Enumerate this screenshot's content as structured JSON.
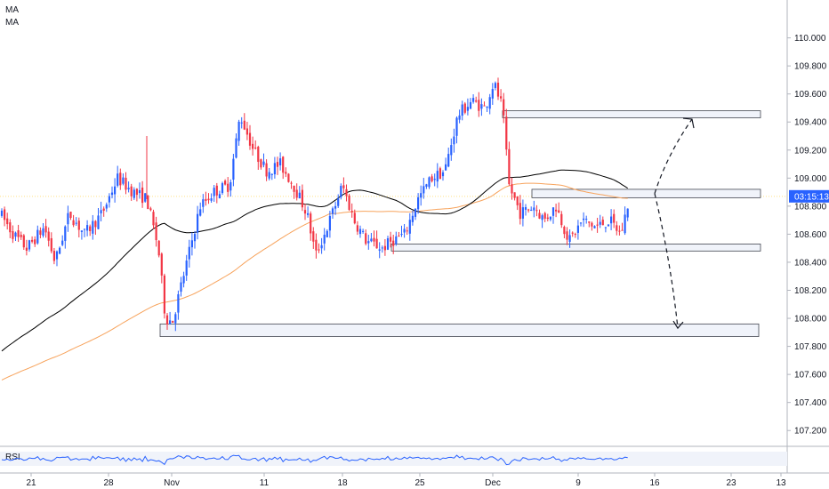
{
  "chart_data": {
    "type": "candlestick",
    "indicators": {
      "ma_labels": [
        "MA",
        "MA"
      ],
      "rsi_label": "RSI"
    },
    "price_axis": {
      "ticks": [
        "110.000",
        "109.800",
        "109.600",
        "109.400",
        "109.200",
        "109.000",
        "108.800",
        "108.600",
        "108.400",
        "108.200",
        "108.000",
        "107.800",
        "107.600",
        "107.400",
        "107.200"
      ],
      "range": [
        107.1,
        110.27
      ]
    },
    "time_axis": {
      "ticks": [
        "21",
        "28",
        "Nov",
        "11",
        "18",
        "25",
        "Dec",
        "9",
        "16",
        "23",
        "13"
      ]
    },
    "countdown_label": "03:15:13",
    "last_price": 108.87,
    "colors": {
      "up": "#2962ff",
      "down": "#f23645",
      "ma_fast": "#000000",
      "ma_slow": "#f7a35c",
      "rsi": "#2962ff",
      "zone_fill": "#f0f3fa",
      "zone_border": "#434651",
      "price_tag": "#2962ff"
    },
    "zones": [
      {
        "low": 109.43,
        "high": 109.48
      },
      {
        "low": 108.86,
        "high": 108.92
      },
      {
        "low": 108.48,
        "high": 108.53
      },
      {
        "low": 107.87,
        "high": 107.96
      }
    ],
    "projection": [
      {
        "time": 0.0,
        "price": 108.89
      },
      {
        "time": 1.0,
        "price": 109.42
      },
      {
        "time": 0.6,
        "price": 107.93
      }
    ]
  }
}
